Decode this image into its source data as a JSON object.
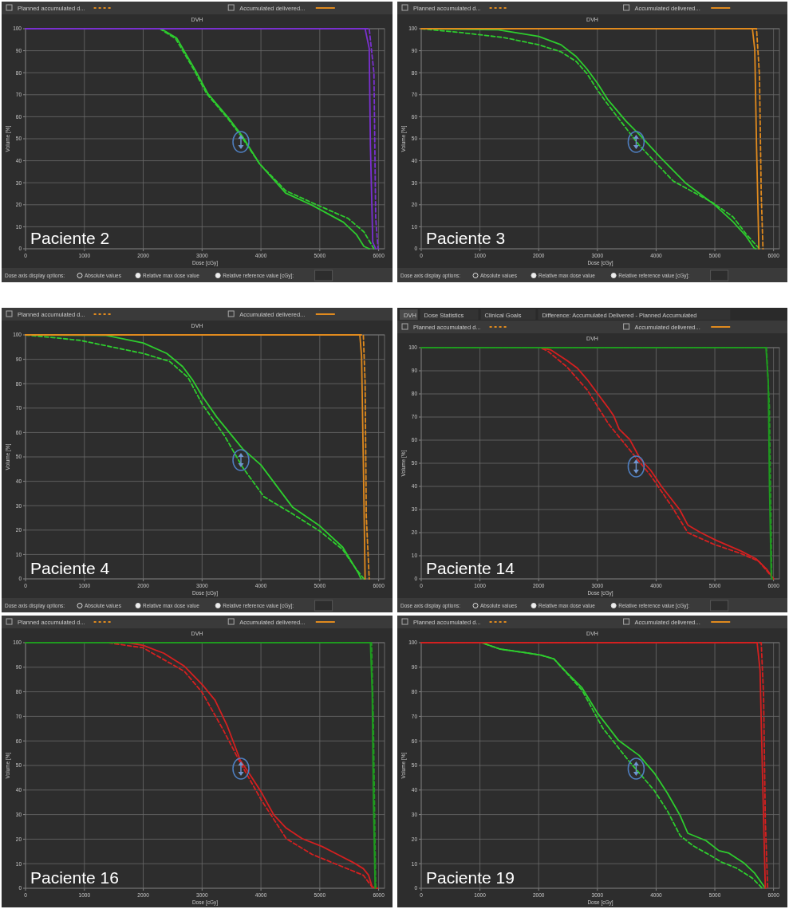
{
  "chart_data": [
    {
      "type": "line",
      "title": "DVH",
      "xlabel": "Dose [cGy]",
      "ylabel": "Volume [%]",
      "xlim": [
        0,
        6100
      ],
      "ylim": [
        0,
        100
      ],
      "xticks": [
        0,
        1000,
        2000,
        3000,
        4000,
        5000,
        6000
      ],
      "yticks": [
        0,
        10,
        20,
        30,
        40,
        50,
        60,
        70,
        80,
        90,
        100
      ],
      "grid": true,
      "annotations": [
        "Paciente 2",
        "Planned accumulated d...",
        "Accumulated delivered...",
        "Dose axis display options:",
        "Absolute values",
        "Relative max dose value",
        "Relative reference value [cGy]:"
      ],
      "series": [
        {
          "color": "#2ecc2e",
          "line_style": "solid",
          "x": [
            0,
            2300,
            2570,
            2880,
            3100,
            3450,
            3670,
            3980,
            4420,
            4870,
            5400,
            5620,
            5750,
            5840
          ],
          "values": [
            100,
            100,
            95.7,
            81.4,
            70.4,
            59.4,
            51.7,
            38.5,
            25.3,
            19.8,
            12.1,
            6.6,
            1.1,
            0
          ]
        },
        {
          "color": "#2ecc2e",
          "line_style": "dashed",
          "x": [
            0,
            2280,
            2550,
            2860,
            3080,
            3430,
            3650,
            3980,
            4420,
            4870,
            5480,
            5750,
            5920
          ],
          "values": [
            100,
            100,
            95.5,
            81.4,
            70.4,
            59.4,
            51.7,
            38.5,
            26.4,
            20.9,
            13.8,
            7.7,
            0
          ]
        },
        {
          "color": "#7a30d0",
          "line_style": "solid",
          "x": [
            0,
            5770,
            5840,
            5860,
            5900,
            5950
          ],
          "values": [
            100,
            100,
            91,
            47,
            3,
            0
          ]
        },
        {
          "color": "#7a30d0",
          "line_style": "dashed",
          "x": [
            0,
            5840,
            5920,
            5950,
            5990
          ],
          "values": [
            100,
            100,
            80,
            14,
            0
          ]
        }
      ]
    },
    {
      "type": "line",
      "title": "DVH",
      "xlabel": "Dose [cGy]",
      "ylabel": "Volume [%]",
      "xlim": [
        0,
        6100
      ],
      "ylim": [
        0,
        100
      ],
      "xticks": [
        0,
        1000,
        2000,
        3000,
        4000,
        5000,
        6000
      ],
      "yticks": [
        0,
        10,
        20,
        30,
        40,
        50,
        60,
        70,
        80,
        90,
        100
      ],
      "grid": true,
      "annotations": [
        "Paciente 3",
        "Planned accumulated d...",
        "Accumulated delivered...",
        "Dose axis display options:",
        "Absolute values",
        "Relative max dose value",
        "Relative reference value [cGy]:"
      ],
      "series": [
        {
          "color": "#2ecc2e",
          "line_style": "solid",
          "x": [
            0,
            1310,
            2000,
            2380,
            2640,
            2820,
            3000,
            3180,
            3490,
            3710,
            4070,
            4510,
            5000,
            5310,
            5530,
            5670,
            5700
          ],
          "values": [
            100,
            99.5,
            96.5,
            92.7,
            87.3,
            81.8,
            75.3,
            67.7,
            57.9,
            52,
            41.6,
            29.7,
            19.9,
            12.3,
            5.8,
            0.3,
            0
          ]
        },
        {
          "color": "#2ecc2e",
          "line_style": "dashed",
          "x": [
            0,
            690,
            1400,
            2000,
            2380,
            2640,
            2820,
            3000,
            3180,
            3710,
            4290,
            4960,
            5310,
            5530,
            5760
          ],
          "values": [
            100,
            98.2,
            96,
            92.7,
            89.5,
            85.1,
            79.7,
            72.1,
            65.5,
            47.1,
            30.8,
            21,
            14.5,
            6.8,
            0
          ]
        },
        {
          "color": "#e08a1e",
          "line_style": "solid",
          "x": [
            0,
            5640,
            5680,
            5710,
            5750
          ],
          "values": [
            100,
            100,
            90.5,
            47,
            0
          ]
        },
        {
          "color": "#e08a1e",
          "line_style": "dashed",
          "x": [
            0,
            5710,
            5760,
            5790,
            5820
          ],
          "values": [
            100,
            100,
            79,
            25,
            0
          ]
        }
      ]
    },
    {
      "type": "line",
      "title": "DVH",
      "xlabel": "Dose [cGy]",
      "ylabel": "Volume [%]",
      "xlim": [
        0,
        6100
      ],
      "ylim": [
        0,
        100
      ],
      "xticks": [
        0,
        1000,
        2000,
        3000,
        4000,
        5000,
        6000
      ],
      "yticks": [
        0,
        10,
        20,
        30,
        40,
        50,
        60,
        70,
        80,
        90,
        100
      ],
      "grid": true,
      "annotations": [
        "Paciente 4",
        "Planned accumulated d...",
        "Accumulated delivered...",
        "Dose axis display options:",
        "Absolute values",
        "Relative max dose value",
        "Relative reference value [cGy]:"
      ],
      "series": [
        {
          "color": "#2ecc2e",
          "line_style": "solid",
          "x": [
            0,
            1370,
            2000,
            2400,
            2670,
            2840,
            3000,
            3250,
            3690,
            4000,
            4540,
            5000,
            5390,
            5660,
            5700
          ],
          "values": [
            100,
            99.8,
            96.7,
            92.4,
            87,
            81.5,
            75,
            66.3,
            53.3,
            46.7,
            29.3,
            21.7,
            13,
            2.2,
            0
          ]
        },
        {
          "color": "#2ecc2e",
          "line_style": "dashed",
          "x": [
            0,
            920,
            2000,
            2450,
            2760,
            3000,
            3380,
            3690,
            4050,
            4500,
            5000,
            5390,
            5610,
            5750
          ],
          "values": [
            100,
            97.8,
            92.4,
            89.1,
            82.6,
            71.7,
            58.7,
            45.7,
            33.7,
            27.2,
            19.6,
            12,
            4.3,
            0
          ]
        },
        {
          "color": "#e08a1e",
          "line_style": "solid",
          "x": [
            0,
            5680,
            5710,
            5740,
            5770
          ],
          "values": [
            100,
            100,
            91.3,
            47.8,
            0
          ]
        },
        {
          "color": "#e08a1e",
          "line_style": "dashed",
          "x": [
            0,
            5740,
            5770,
            5790,
            5840
          ],
          "values": [
            100,
            100,
            80.4,
            26,
            0
          ]
        }
      ]
    },
    {
      "type": "line",
      "title": "DVH",
      "xlabel": "Dose [cGy]",
      "ylabel": "Volume [%]",
      "xlim": [
        0,
        6100
      ],
      "ylim": [
        0,
        100
      ],
      "xticks": [
        0,
        1000,
        2000,
        3000,
        4000,
        5000,
        6000
      ],
      "yticks": [
        0,
        10,
        20,
        30,
        40,
        50,
        60,
        70,
        80,
        90,
        100
      ],
      "grid": true,
      "annotations": [
        "Paciente 14",
        "Planned accumulated d...",
        "Accumulated delivered...",
        "Dose axis display options:",
        "Absolute values",
        "Relative max dose value",
        "Relative reference value [cGy]:",
        "DVH",
        "Dose Statistics",
        "Clinical Goals",
        "Difference: Accumulated Delivered - Planned Accumulated"
      ],
      "series": [
        {
          "color": "#d42020",
          "line_style": "solid",
          "x": [
            0,
            2030,
            2210,
            2480,
            2660,
            2830,
            3010,
            3190,
            3280,
            3370,
            3550,
            3730,
            3910,
            4090,
            4400,
            4540,
            4760,
            5030,
            5440,
            5700,
            5880,
            6000
          ],
          "values": [
            100,
            100,
            99,
            94.5,
            91.1,
            86.1,
            79.9,
            73.8,
            70.4,
            64.8,
            60.3,
            51.9,
            46.9,
            40.1,
            30,
            23.3,
            20,
            16.6,
            12.1,
            8.7,
            4.3,
            0
          ]
        },
        {
          "color": "#d42020",
          "line_style": "dashed",
          "x": [
            0,
            2030,
            2160,
            2480,
            2830,
            3190,
            3550,
            3910,
            4270,
            4540,
            4990,
            5440,
            5750,
            5970,
            6000
          ],
          "values": [
            100,
            100,
            98.4,
            91.7,
            81.6,
            67,
            55.8,
            44.6,
            31.2,
            20,
            14.9,
            11,
            7.6,
            0.9,
            0
          ]
        },
        {
          "color": "#1f9a1f",
          "line_style": "solid",
          "x": [
            0,
            5870,
            5910,
            5930,
            5960,
            5980
          ],
          "values": [
            100,
            100,
            85,
            40,
            0.9,
            0
          ]
        },
        {
          "color": "#1f9a1f",
          "line_style": "dashed",
          "x": [
            0,
            5880,
            5930,
            5970
          ],
          "values": [
            100,
            100,
            74,
            0
          ]
        }
      ]
    },
    {
      "type": "line",
      "title": "DVH",
      "xlabel": "Dose [cGy]",
      "ylabel": "Volume [%]",
      "xlim": [
        0,
        6100
      ],
      "ylim": [
        0,
        100
      ],
      "xticks": [
        0,
        1000,
        2000,
        3000,
        4000,
        5000,
        6000
      ],
      "yticks": [
        0,
        10,
        20,
        30,
        40,
        50,
        60,
        70,
        80,
        90,
        100
      ],
      "grid": true,
      "annotations": [
        "Paciente 16",
        "Planned accumulated d...",
        "Accumulated delivered..."
      ],
      "series": [
        {
          "color": "#d42020",
          "line_style": "solid",
          "x": [
            0,
            1740,
            2000,
            2350,
            2700,
            3000,
            3220,
            3430,
            3650,
            3830,
            4000,
            4220,
            4430,
            4700,
            5040,
            5300,
            5560,
            5740,
            5830,
            5890,
            5980
          ],
          "values": [
            100,
            100,
            98.9,
            95.7,
            90.4,
            83,
            76.6,
            66,
            52.1,
            45.7,
            39.4,
            29.8,
            24.5,
            20.2,
            17,
            13.8,
            10.6,
            8,
            5.3,
            0.5,
            0
          ]
        },
        {
          "color": "#d42020",
          "line_style": "dashed",
          "x": [
            0,
            1390,
            2000,
            2700,
            3000,
            3350,
            3650,
            4000,
            4430,
            4870,
            5300,
            5740,
            5890,
            5980
          ],
          "values": [
            100,
            100,
            97.9,
            88.3,
            79.8,
            64.9,
            51.1,
            36.2,
            20.2,
            13.8,
            9.6,
            5.3,
            0.5,
            0
          ]
        },
        {
          "color": "#1f9a1f",
          "line_style": "solid",
          "x": [
            0,
            5860,
            5890,
            5910,
            5940
          ],
          "values": [
            100,
            100,
            79.8,
            37.2,
            0
          ]
        },
        {
          "color": "#1f9a1f",
          "line_style": "dashed",
          "x": [
            0,
            5880,
            5910,
            5950
          ],
          "values": [
            100,
            100,
            69,
            0
          ]
        }
      ]
    },
    {
      "type": "line",
      "title": "DVH",
      "xlabel": "Dose [cGy]",
      "ylabel": "Volume [%]",
      "xlim": [
        0,
        6100
      ],
      "ylim": [
        0,
        100
      ],
      "xticks": [
        0,
        1000,
        2000,
        3000,
        4000,
        5000,
        6000
      ],
      "yticks": [
        0,
        10,
        20,
        30,
        40,
        50,
        60,
        70,
        80,
        90,
        100
      ],
      "grid": true,
      "annotations": [
        "Paciente 19",
        "Planned accumulated d...",
        "Accumulated delivered..."
      ],
      "series": [
        {
          "color": "#2ecc2e",
          "line_style": "solid",
          "x": [
            0,
            1030,
            1340,
            1780,
            2040,
            2260,
            2480,
            2740,
            3000,
            3360,
            3710,
            3970,
            4190,
            4410,
            4540,
            4850,
            5070,
            5240,
            5500,
            5680,
            5860
          ],
          "values": [
            100,
            100,
            97.4,
            95.9,
            94.9,
            93.4,
            87.8,
            81.6,
            71.4,
            60.2,
            54.1,
            46.9,
            38.8,
            29.6,
            22.4,
            19.4,
            15.3,
            14.3,
            10.2,
            6.1,
            0
          ]
        },
        {
          "color": "#2ecc2e",
          "line_style": "dashed",
          "x": [
            0,
            1030,
            1340,
            1780,
            2040,
            2260,
            2740,
            3090,
            3530,
            3970,
            4190,
            4410,
            4630,
            4930,
            5110,
            5370,
            5640,
            5810
          ],
          "values": [
            100,
            100,
            97.4,
            95.9,
            94.9,
            93.4,
            80.6,
            65.3,
            52,
            39.8,
            31.6,
            21.4,
            17.3,
            13.3,
            10.7,
            8.2,
            4.1,
            0
          ]
        },
        {
          "color": "#d42020",
          "line_style": "solid",
          "x": [
            0,
            5720,
            5770,
            5810,
            5860
          ],
          "values": [
            100,
            100,
            88.8,
            48,
            0
          ]
        },
        {
          "color": "#d42020",
          "line_style": "dashed",
          "x": [
            0,
            5790,
            5830,
            5860,
            5900
          ],
          "values": [
            100,
            100,
            78.6,
            27.6,
            0
          ]
        }
      ]
    }
  ]
}
